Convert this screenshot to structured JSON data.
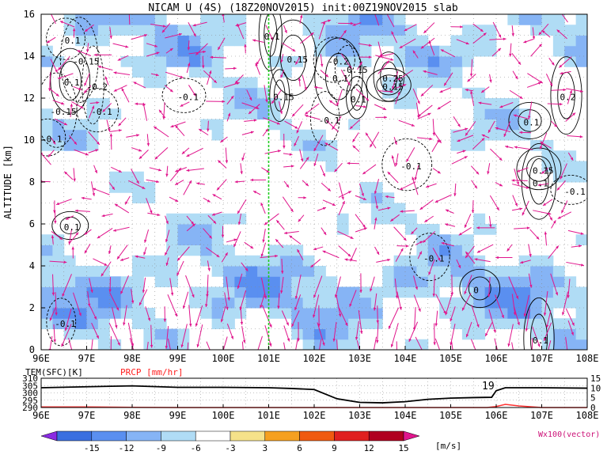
{
  "title": "NICAM U (4S) (18Z20NOV2015) init:00Z19NOV2015 slab",
  "colors": {
    "vector": "#e0158c",
    "marker_line": "#22cc22",
    "contour": "#000000",
    "temperature": "#000000",
    "precip": "#ff3030",
    "precip_label": "#ff2020",
    "wind_label": "#cc1177"
  },
  "chart_data": [
    {
      "type": "heatmap",
      "name": "main_section",
      "ylabel": "ALTITUDE [km]",
      "x_ticks": [
        "96E",
        "97E",
        "98E",
        "99E",
        "100E",
        "101E",
        "102E",
        "103E",
        "104E",
        "105E",
        "106E",
        "107E",
        "108E"
      ],
      "x_range": [
        96,
        108
      ],
      "y_ticks": [
        "0",
        "2",
        "4",
        "6",
        "8",
        "10",
        "12",
        "14",
        "16"
      ],
      "y_range": [
        0,
        16
      ],
      "marker_line_x": 101,
      "contour_labels": [
        {
          "text": "-0.1",
          "x": 96.4,
          "y": 14.6
        },
        {
          "text": "-0.15",
          "x": 96.7,
          "y": 13.6
        },
        {
          "text": "0.1",
          "x": 96.5,
          "y": 12.6
        },
        {
          "text": "-0.2",
          "x": 97.0,
          "y": 12.4
        },
        {
          "text": "-0.15",
          "x": 96.2,
          "y": 11.2
        },
        {
          "text": "-0.1",
          "x": 97.1,
          "y": 11.2
        },
        {
          "text": "-0.1",
          "x": 99.0,
          "y": 11.9
        },
        {
          "text": "-0.1",
          "x": 96.0,
          "y": 9.9
        },
        {
          "text": "0.1",
          "x": 100.9,
          "y": 14.8
        },
        {
          "text": "0.15",
          "x": 101.4,
          "y": 13.7
        },
        {
          "text": "0.15",
          "x": 101.1,
          "y": 11.9
        },
        {
          "text": "-0.2",
          "x": 102.3,
          "y": 13.6
        },
        {
          "text": "-0.15",
          "x": 102.6,
          "y": 13.2
        },
        {
          "text": "0.1",
          "x": 102.4,
          "y": 12.8
        },
        {
          "text": "0.25",
          "x": 103.5,
          "y": 12.8
        },
        {
          "text": "0.15",
          "x": 103.5,
          "y": 12.4
        },
        {
          "text": "0.1",
          "x": 102.8,
          "y": 11.8
        },
        {
          "text": "-0.1",
          "x": 102.1,
          "y": 10.8
        },
        {
          "text": "-0.1",
          "x": 103.9,
          "y": 8.6
        },
        {
          "text": "0.1",
          "x": 106.6,
          "y": 10.7
        },
        {
          "text": "0.2",
          "x": 107.4,
          "y": 11.9
        },
        {
          "text": "0.15",
          "x": 106.8,
          "y": 8.4
        },
        {
          "text": "0.1",
          "x": 106.8,
          "y": 7.8
        },
        {
          "text": "-0.1",
          "x": 107.5,
          "y": 7.4
        },
        {
          "text": "0.1",
          "x": 96.5,
          "y": 5.7
        },
        {
          "text": "-0.1",
          "x": 104.4,
          "y": 4.2
        },
        {
          "text": "0",
          "x": 105.5,
          "y": 2.7
        },
        {
          "text": "-0.1",
          "x": 96.3,
          "y": 1.1
        },
        {
          "text": "0.1",
          "x": 106.8,
          "y": 0.3
        }
      ]
    },
    {
      "type": "line",
      "name": "surface_panel",
      "series": [
        {
          "name": "TEM(SFC)[K]",
          "axis": "left",
          "ylim": [
            290,
            310
          ],
          "x": [
            96,
            97,
            98,
            99,
            100,
            101,
            101.5,
            102,
            102.5,
            103,
            103.5,
            104,
            104.5,
            105,
            105.5,
            105.9,
            106,
            106.2,
            107,
            108
          ],
          "values": [
            303.5,
            304.2,
            304.8,
            303.8,
            303.8,
            303.5,
            303,
            302.3,
            296,
            293.5,
            293.2,
            294,
            295.6,
            296.4,
            296.8,
            297,
            301.5,
            303.5,
            303.5,
            303.2
          ]
        },
        {
          "name": "PRCP [mm/hr]",
          "axis": "right",
          "ylim": [
            0,
            15
          ],
          "x": [
            96,
            97,
            98,
            99,
            100,
            101,
            102,
            103,
            104,
            105,
            105.8,
            106,
            106.2,
            106.5,
            107,
            108
          ],
          "values": [
            0.3,
            0.3,
            0.1,
            0,
            0,
            0,
            0,
            0,
            0,
            0,
            0,
            0.5,
            1.6,
            0.8,
            0,
            0
          ]
        }
      ],
      "left_ticks": [
        "310",
        "305",
        "300",
        "295",
        "290"
      ],
      "right_ticks": [
        "15",
        "10",
        "5",
        "0"
      ],
      "x_ticks": [
        "96E",
        "97E",
        "98E",
        "99E",
        "100E",
        "101E",
        "102E",
        "103E",
        "104E",
        "105E",
        "106E",
        "107E",
        "108E"
      ],
      "annotation": "19"
    },
    {
      "type": "colorbar",
      "name": "colorbar",
      "ticks": [
        "-15",
        "-12",
        "-9",
        "-6",
        "-3",
        "3",
        "6",
        "9",
        "12",
        "15"
      ],
      "units": "[m/s]",
      "colors": [
        "#8a2be2",
        "#3a6fe0",
        "#5a8ff0",
        "#86b4f5",
        "#b0dcf5",
        "#ffffff",
        "#f5e28a",
        "#f5a020",
        "#f05a10",
        "#e02020",
        "#b00020",
        "#e0158c"
      ],
      "note": "Wx100(vector)"
    }
  ]
}
